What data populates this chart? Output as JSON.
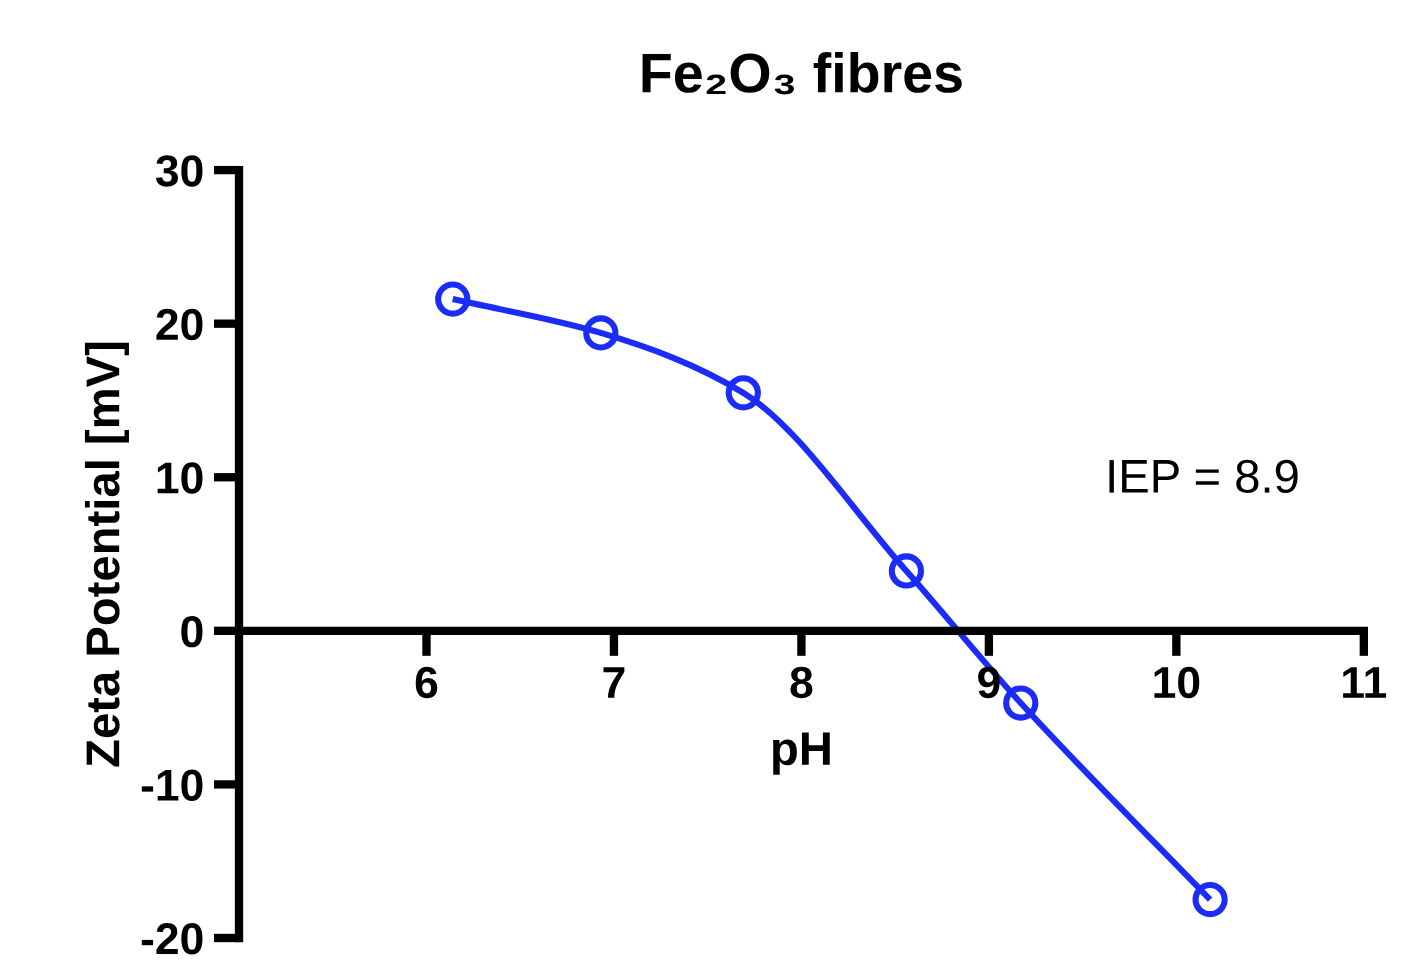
{
  "chart_data": {
    "type": "line",
    "title": "Fe₂O₃ fibres",
    "xlabel": "pH",
    "ylabel": "Zeta Potential [mV]",
    "x": [
      6.14,
      6.93,
      7.69,
      8.56,
      9.17,
      10.18
    ],
    "series": [
      {
        "color": "#1a2cf5",
        "values": [
          21.6,
          19.4,
          15.5,
          3.9,
          -4.7,
          -17.5
        ]
      }
    ],
    "marker": "circle",
    "line_style": "solid",
    "xlim": [
      5,
      11
    ],
    "xticks": [
      6,
      7,
      8,
      9,
      10,
      11
    ],
    "ylim": [
      -20,
      30
    ],
    "yticks": [
      -20,
      -10,
      0,
      10,
      20,
      30
    ],
    "annotations": [
      "IEP = 8.9"
    ],
    "grid": false,
    "legend": false
  }
}
